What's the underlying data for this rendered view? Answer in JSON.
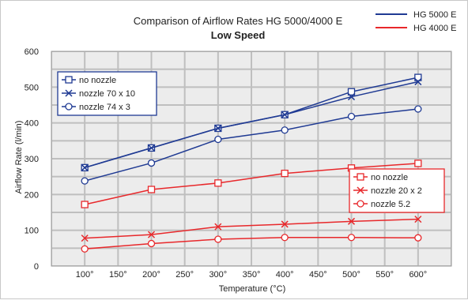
{
  "chart_data": {
    "type": "line",
    "title": "Comparison of Airflow Rates HG 5000/4000 E",
    "subtitle": "Low Speed",
    "xlabel": "Temperature (°C)",
    "ylabel": "Airflow Rate (l/min)",
    "xlim": [
      100,
      600
    ],
    "ylim": [
      0,
      600
    ],
    "x_ticks": [
      100,
      150,
      200,
      250,
      300,
      350,
      400,
      450,
      500,
      550,
      600
    ],
    "x_tick_labels": [
      "100°",
      "150°",
      "200°",
      "250°",
      "300°",
      "350°",
      "400°",
      "450°",
      "500°",
      "550°",
      "600°"
    ],
    "y_ticks": [
      0,
      100,
      200,
      300,
      400,
      500,
      600
    ],
    "grid": true,
    "device_legend": {
      "placement": "top-right",
      "items": [
        {
          "label": "HG 5000 E",
          "color": "#1f3a93"
        },
        {
          "label": "HG 4000 E",
          "color": "#e8282b"
        }
      ]
    },
    "groups": [
      {
        "device": "HG 5000 E",
        "color": "#1f3a93",
        "legend_placement": "top-left",
        "series": [
          {
            "name": "no nozzle",
            "marker": "square",
            "x": [
              100,
              200,
              300,
              400,
              500,
              600
            ],
            "y": [
              275,
              330,
              385,
              423,
              487,
              527
            ]
          },
          {
            "name": "nozzle 70 x 10",
            "marker": "x",
            "x": [
              100,
              200,
              300,
              400,
              500,
              600
            ],
            "y": [
              275,
              330,
              385,
              423,
              473,
              515
            ]
          },
          {
            "name": "nozzle 74 x 3",
            "marker": "circle",
            "x": [
              100,
              200,
              300,
              400,
              500,
              600
            ],
            "y": [
              238,
              288,
              354,
              380,
              418,
              439
            ]
          }
        ]
      },
      {
        "device": "HG 4000 E",
        "color": "#e8282b",
        "legend_placement": "right",
        "series": [
          {
            "name": "no nozzle",
            "marker": "square",
            "x": [
              100,
              200,
              300,
              400,
              500,
              600
            ],
            "y": [
              172,
              214,
              232,
              259,
              274,
              287
            ]
          },
          {
            "name": "nozzle 20 x 2",
            "marker": "x",
            "x": [
              100,
              200,
              300,
              400,
              500,
              600
            ],
            "y": [
              78,
              88,
              110,
              117,
              125,
              131
            ]
          },
          {
            "name": "nozzle 5.2",
            "marker": "circle",
            "x": [
              100,
              200,
              300,
              400,
              500,
              600
            ],
            "y": [
              48,
              63,
              75,
              80,
              80,
              79
            ]
          }
        ]
      }
    ]
  }
}
